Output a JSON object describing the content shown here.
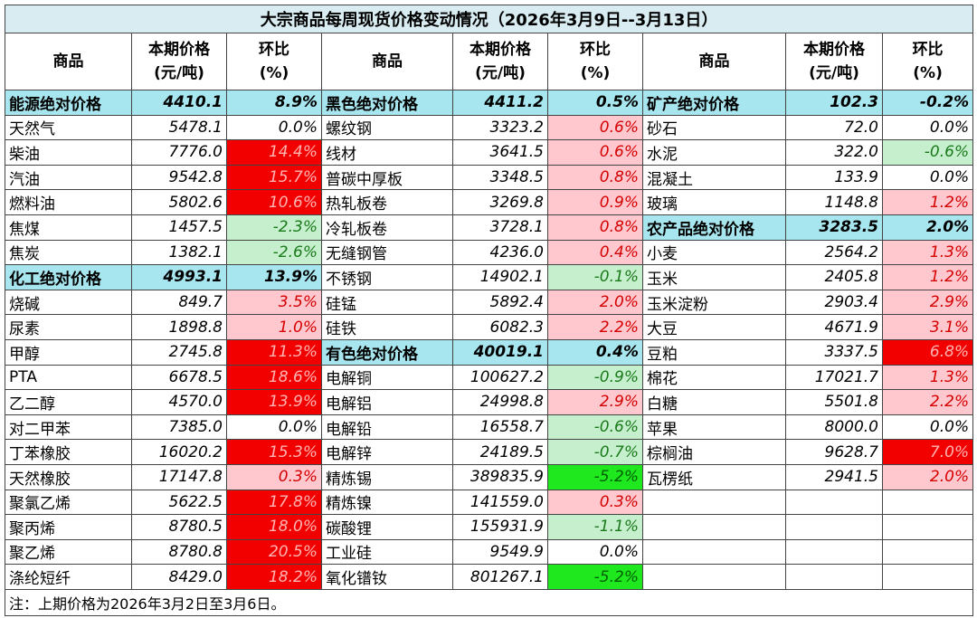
{
  "title": "大宗商品每周现货价格变动情况（2026年3月9日--3月13日）",
  "headers": [
    "商品",
    "本期价格\n(元/吨)",
    "环比\n(%)"
  ],
  "groups": [
    {
      "rows": [
        {
          "name": "能源绝对价格",
          "price": "4410.1",
          "change": "8.9%",
          "section": true
        },
        {
          "name": "天然气",
          "price": "5478.1",
          "change": "0.0%"
        },
        {
          "name": "柴油",
          "price": "7776.0",
          "change": "14.4%"
        },
        {
          "name": "汽油",
          "price": "9542.8",
          "change": "15.7%"
        },
        {
          "name": "燃料油",
          "price": "5802.6",
          "change": "10.6%"
        },
        {
          "name": "焦煤",
          "price": "1457.5",
          "change": "-2.3%"
        },
        {
          "name": "焦炭",
          "price": "1382.1",
          "change": "-2.6%"
        },
        {
          "name": "化工绝对价格",
          "price": "4993.1",
          "change": "13.9%",
          "section": true
        },
        {
          "name": "烧碱",
          "price": "849.7",
          "change": "3.5%"
        },
        {
          "name": "尿素",
          "price": "1898.8",
          "change": "1.0%"
        },
        {
          "name": "甲醇",
          "price": "2745.8",
          "change": "11.3%"
        },
        {
          "name": "PTA",
          "price": "6678.5",
          "change": "18.6%"
        },
        {
          "name": "乙二醇",
          "price": "4570.0",
          "change": "13.9%"
        },
        {
          "name": "对二甲苯",
          "price": "7385.0",
          "change": "0.0%"
        },
        {
          "name": "丁苯橡胶",
          "price": "16020.2",
          "change": "15.3%"
        },
        {
          "name": "天然橡胶",
          "price": "17147.8",
          "change": "0.3%"
        },
        {
          "name": "聚氯乙烯",
          "price": "5622.5",
          "change": "17.8%"
        },
        {
          "name": "聚丙烯",
          "price": "8780.5",
          "change": "18.0%"
        },
        {
          "name": "聚乙烯",
          "price": "8780.8",
          "change": "20.5%"
        },
        {
          "name": "涤纶短纤",
          "price": "8429.0",
          "change": "18.2%"
        }
      ]
    },
    {
      "rows": [
        {
          "name": "黑色绝对价格",
          "price": "4411.2",
          "change": "0.5%",
          "section": true
        },
        {
          "name": "螺纹钢",
          "price": "3323.2",
          "change": "0.6%"
        },
        {
          "name": "线材",
          "price": "3641.5",
          "change": "0.6%"
        },
        {
          "name": "普碳中厚板",
          "price": "3348.5",
          "change": "0.8%"
        },
        {
          "name": "热轧板卷",
          "price": "3269.8",
          "change": "0.9%"
        },
        {
          "name": "冷轧板卷",
          "price": "3728.1",
          "change": "0.8%"
        },
        {
          "name": "无缝钢管",
          "price": "4236.0",
          "change": "0.4%"
        },
        {
          "name": "不锈钢",
          "price": "14902.1",
          "change": "-0.1%"
        },
        {
          "name": "硅锰",
          "price": "5892.4",
          "change": "2.0%"
        },
        {
          "name": "硅铁",
          "price": "6082.3",
          "change": "2.2%"
        },
        {
          "name": "有色绝对价格",
          "price": "40019.1",
          "change": "0.4%",
          "section": true
        },
        {
          "name": "电解铜",
          "price": "100627.2",
          "change": "-0.9%"
        },
        {
          "name": "电解铝",
          "price": "24998.8",
          "change": "2.9%"
        },
        {
          "name": "电解铅",
          "price": "16558.7",
          "change": "-0.6%"
        },
        {
          "name": "电解锌",
          "price": "24189.5",
          "change": "-0.7%"
        },
        {
          "name": "精炼锡",
          "price": "389835.9",
          "change": "-5.2%"
        },
        {
          "name": "精炼镍",
          "price": "141559.0",
          "change": "0.3%"
        },
        {
          "name": "碳酸锂",
          "price": "155931.9",
          "change": "-1.1%"
        },
        {
          "name": "工业硅",
          "price": "9549.9",
          "change": "0.0%"
        },
        {
          "name": "氧化镨钕",
          "price": "801267.1",
          "change": "-5.2%"
        }
      ]
    },
    {
      "rows": [
        {
          "name": "矿产绝对价格",
          "price": "102.3",
          "change": "-0.2%",
          "section": true
        },
        {
          "name": "砂石",
          "price": "72.0",
          "change": "0.0%"
        },
        {
          "name": "水泥",
          "price": "322.0",
          "change": "-0.6%"
        },
        {
          "name": "混凝土",
          "price": "133.9",
          "change": "0.0%"
        },
        {
          "name": "玻璃",
          "price": "1148.8",
          "change": "1.2%"
        },
        {
          "name": "农产品绝对价格",
          "price": "3283.5",
          "change": "2.0%",
          "section": true
        },
        {
          "name": "小麦",
          "price": "2564.2",
          "change": "1.3%"
        },
        {
          "name": "玉米",
          "price": "2405.8",
          "change": "1.2%"
        },
        {
          "name": "玉米淀粉",
          "price": "2903.4",
          "change": "2.9%"
        },
        {
          "name": "大豆",
          "price": "4671.9",
          "change": "3.1%"
        },
        {
          "name": "豆粕",
          "price": "3337.5",
          "change": "6.8%"
        },
        {
          "name": "棉花",
          "price": "17021.7",
          "change": "1.3%"
        },
        {
          "name": "白糖",
          "price": "5501.8",
          "change": "2.2%"
        },
        {
          "name": "苹果",
          "price": "8000.0",
          "change": "0.0%"
        },
        {
          "name": "棕榈油",
          "price": "9628.7",
          "change": "7.0%"
        },
        {
          "name": "瓦楞纸",
          "price": "2941.5",
          "change": "2.0%"
        }
      ]
    }
  ],
  "note": "注：上期价格为2026年3月2日至3月6日。"
}
